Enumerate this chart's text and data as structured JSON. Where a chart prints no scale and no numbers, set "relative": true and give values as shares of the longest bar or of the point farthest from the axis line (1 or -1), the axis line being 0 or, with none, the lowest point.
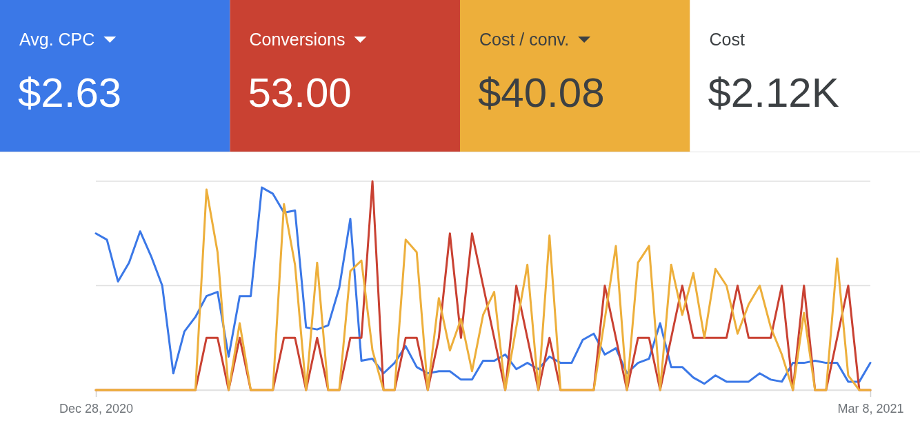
{
  "chart_data": [
    {
      "type": "other",
      "categories": [
        "Avg. CPC",
        "Conversions",
        "Cost / conv.",
        "Cost"
      ],
      "annotations": [
        "$2.63",
        "53.00",
        "$40.08",
        "$2.12K"
      ],
      "colors": [
        "#3b78e7",
        "#c94132",
        "#edaf3b",
        "#ffffff"
      ]
    },
    {
      "type": "line",
      "relative": true,
      "grid": "y",
      "ref_lines": [
        {
          "axis": "y",
          "value": 0.5,
          "color": "#e0e0e0"
        }
      ],
      "x": [
        "2020-12-28",
        "2020-12-29",
        "2020-12-30",
        "2020-12-31",
        "2021-01-01",
        "2021-01-02",
        "2021-01-03",
        "2021-01-04",
        "2021-01-05",
        "2021-01-06",
        "2021-01-07",
        "2021-01-08",
        "2021-01-09",
        "2021-01-10",
        "2021-01-11",
        "2021-01-12",
        "2021-01-13",
        "2021-01-14",
        "2021-01-15",
        "2021-01-16",
        "2021-01-17",
        "2021-01-18",
        "2021-01-19",
        "2021-01-20",
        "2021-01-21",
        "2021-01-22",
        "2021-01-23",
        "2021-01-24",
        "2021-01-25",
        "2021-01-26",
        "2021-01-27",
        "2021-01-28",
        "2021-01-29",
        "2021-01-30",
        "2021-01-31",
        "2021-02-01",
        "2021-02-02",
        "2021-02-03",
        "2021-02-04",
        "2021-02-05",
        "2021-02-06",
        "2021-02-07",
        "2021-02-08",
        "2021-02-09",
        "2021-02-10",
        "2021-02-11",
        "2021-02-12",
        "2021-02-13",
        "2021-02-14",
        "2021-02-15",
        "2021-02-16",
        "2021-02-17",
        "2021-02-18",
        "2021-02-19",
        "2021-02-20",
        "2021-02-21",
        "2021-02-22",
        "2021-02-23",
        "2021-02-24",
        "2021-02-25",
        "2021-02-26",
        "2021-02-27",
        "2021-02-28",
        "2021-03-01",
        "2021-03-02",
        "2021-03-03",
        "2021-03-04",
        "2021-03-05",
        "2021-03-06",
        "2021-03-07",
        "2021-03-08"
      ],
      "xlim": [
        "2020-12-28",
        "2021-03-08"
      ],
      "xticks": [
        {
          "value": "2020-12-28",
          "label": "Dec 28, 2020"
        },
        {
          "value": "2021-03-08",
          "label": "Mar 8, 2021"
        }
      ],
      "series": [
        {
          "color": "#3b78e7",
          "values": [
            0.75,
            0.72,
            0.52,
            0.61,
            0.76,
            0.64,
            0.5,
            0.08,
            0.28,
            0.35,
            0.45,
            0.47,
            0.16,
            0.45,
            0.45,
            0.97,
            0.94,
            0.85,
            0.86,
            0.3,
            0.29,
            0.31,
            0.49,
            0.82,
            0.14,
            0.15,
            0.08,
            0.13,
            0.21,
            0.11,
            0.08,
            0.09,
            0.09,
            0.05,
            0.05,
            0.14,
            0.14,
            0.17,
            0.1,
            0.13,
            0.1,
            0.16,
            0.13,
            0.13,
            0.24,
            0.27,
            0.17,
            0.2,
            0.08,
            0.13,
            0.15,
            0.32,
            0.11,
            0.11,
            0.06,
            0.03,
            0.07,
            0.04,
            0.04,
            0.04,
            0.08,
            0.05,
            0.04,
            0.13,
            0.13,
            0.14,
            0.13,
            0.13,
            0.04,
            0.04,
            0.13
          ]
        },
        {
          "color": "#c94132",
          "values": [
            0,
            0,
            0,
            0,
            0,
            0,
            0,
            0,
            0,
            0,
            0.25,
            0.25,
            0,
            0.25,
            0,
            0,
            0,
            0.25,
            0.25,
            0,
            0.25,
            0,
            0,
            0.25,
            0.25,
            1,
            0,
            0,
            0.25,
            0.25,
            0,
            0.25,
            0.75,
            0.25,
            0.75,
            0.5,
            0.25,
            0,
            0.5,
            0.25,
            0,
            0.25,
            0,
            0,
            0,
            0,
            0.5,
            0.25,
            0,
            0.25,
            0.25,
            0,
            0.25,
            0.5,
            0.25,
            0.25,
            0.25,
            0.25,
            0.5,
            0.25,
            0.25,
            0.25,
            0.5,
            0,
            0.5,
            0,
            0,
            0.25,
            0.5,
            0,
            0
          ]
        },
        {
          "color": "#edaf3b",
          "values": [
            0,
            0,
            0,
            0,
            0,
            0,
            0,
            0,
            0,
            0,
            0.96,
            0.66,
            0,
            0.32,
            0,
            0,
            0,
            0.89,
            0.6,
            0,
            0.61,
            0,
            0,
            0.57,
            0.62,
            0.19,
            0,
            0,
            0.72,
            0.66,
            0,
            0.44,
            0.19,
            0.34,
            0.09,
            0.36,
            0.47,
            0,
            0.3,
            0.6,
            0,
            0.74,
            0,
            0,
            0,
            0,
            0.34,
            0.69,
            0,
            0.61,
            0.69,
            0,
            0.6,
            0.36,
            0.56,
            0.25,
            0.58,
            0.5,
            0.27,
            0.41,
            0.5,
            0.3,
            0.17,
            0,
            0.37,
            0,
            0,
            0.63,
            0.07,
            0,
            0
          ]
        }
      ]
    }
  ]
}
